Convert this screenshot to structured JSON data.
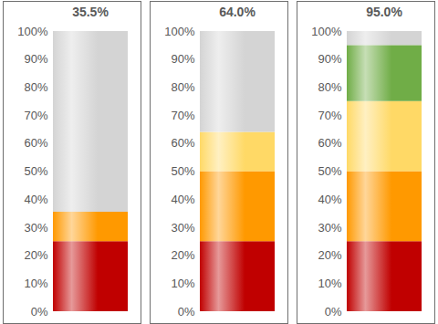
{
  "chart_data": [
    {
      "type": "bar",
      "title": "35.5%",
      "stacked": true,
      "grid": false,
      "categories": [
        null
      ],
      "series": [
        {
          "color": "#c00000",
          "values": [
            25
          ]
        },
        {
          "color": "#ff9900",
          "values": [
            10.5
          ]
        },
        {
          "color": "#d4d4d4",
          "values": [
            64.5
          ]
        }
      ],
      "ylim": [
        0,
        100
      ],
      "yticks": [
        {
          "value": 0,
          "label": "0%"
        },
        {
          "value": 10,
          "label": "10%"
        },
        {
          "value": 20,
          "label": "20%"
        },
        {
          "value": 30,
          "label": "30%"
        },
        {
          "value": 40,
          "label": "40%"
        },
        {
          "value": 50,
          "label": "50%"
        },
        {
          "value": 60,
          "label": "60%"
        },
        {
          "value": 70,
          "label": "70%"
        },
        {
          "value": 80,
          "label": "80%"
        },
        {
          "value": 90,
          "label": "90%"
        },
        {
          "value": 100,
          "label": "100%"
        }
      ]
    },
    {
      "type": "bar",
      "title": "64.0%",
      "stacked": true,
      "grid": false,
      "categories": [
        null
      ],
      "series": [
        {
          "color": "#c00000",
          "values": [
            25
          ]
        },
        {
          "color": "#ff9900",
          "values": [
            25
          ]
        },
        {
          "color": "#ffd966",
          "values": [
            14
          ]
        },
        {
          "color": "#d4d4d4",
          "values": [
            36
          ]
        }
      ],
      "ylim": [
        0,
        100
      ],
      "yticks": [
        {
          "value": 0,
          "label": "0%"
        },
        {
          "value": 10,
          "label": "10%"
        },
        {
          "value": 20,
          "label": "20%"
        },
        {
          "value": 30,
          "label": "30%"
        },
        {
          "value": 40,
          "label": "40%"
        },
        {
          "value": 50,
          "label": "50%"
        },
        {
          "value": 60,
          "label": "60%"
        },
        {
          "value": 70,
          "label": "70%"
        },
        {
          "value": 80,
          "label": "80%"
        },
        {
          "value": 90,
          "label": "90%"
        },
        {
          "value": 100,
          "label": "100%"
        }
      ]
    },
    {
      "type": "bar",
      "title": "95.0%",
      "stacked": true,
      "grid": false,
      "categories": [
        null
      ],
      "series": [
        {
          "color": "#c00000",
          "values": [
            25
          ]
        },
        {
          "color": "#ff9900",
          "values": [
            25
          ]
        },
        {
          "color": "#ffd966",
          "values": [
            25
          ]
        },
        {
          "color": "#70ad47",
          "values": [
            20
          ]
        },
        {
          "color": "#d4d4d4",
          "values": [
            5
          ]
        }
      ],
      "ylim": [
        0,
        100
      ],
      "yticks": [
        {
          "value": 0,
          "label": "0%"
        },
        {
          "value": 10,
          "label": "10%"
        },
        {
          "value": 20,
          "label": "20%"
        },
        {
          "value": 30,
          "label": "30%"
        },
        {
          "value": 40,
          "label": "40%"
        },
        {
          "value": 50,
          "label": "50%"
        },
        {
          "value": 60,
          "label": "60%"
        },
        {
          "value": 70,
          "label": "70%"
        },
        {
          "value": 80,
          "label": "80%"
        },
        {
          "value": 90,
          "label": "90%"
        },
        {
          "value": 100,
          "label": "100%"
        }
      ]
    }
  ]
}
